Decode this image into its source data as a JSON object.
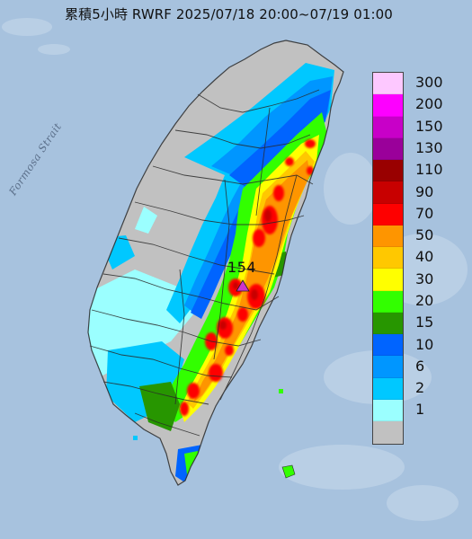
{
  "title": "累積5小時 RWRF 2025/07/18 20:00~07/19 01:00",
  "sea_label": "Formosa Strait",
  "max_station": {
    "value": "154",
    "marker_color": "#cc33cc"
  },
  "legend": {
    "items": [
      {
        "label": "300",
        "color": "#fdc8ff"
      },
      {
        "label": "200",
        "color": "#fd00ff"
      },
      {
        "label": "150",
        "color": "#c800c8"
      },
      {
        "label": "130",
        "color": "#9a009a"
      },
      {
        "label": "110",
        "color": "#990000"
      },
      {
        "label": "90",
        "color": "#c80000"
      },
      {
        "label": "70",
        "color": "#fe0000"
      },
      {
        "label": "50",
        "color": "#fe9500"
      },
      {
        "label": "40",
        "color": "#ffc800"
      },
      {
        "label": "30",
        "color": "#ffff00"
      },
      {
        "label": "20",
        "color": "#32ff00"
      },
      {
        "label": "15",
        "color": "#279600"
      },
      {
        "label": "10",
        "color": "#0064ff"
      },
      {
        "label": "6",
        "color": "#0096ff"
      },
      {
        "label": "2",
        "color": "#00c8ff"
      },
      {
        "label": "1",
        "color": "#9bffff"
      },
      {
        "label": "",
        "color": "#c1c1c1"
      }
    ]
  },
  "colors": {
    "sea": "#a7c2de",
    "no_rain": "#c1c1c1",
    "county_border": "#2a2a2a"
  }
}
